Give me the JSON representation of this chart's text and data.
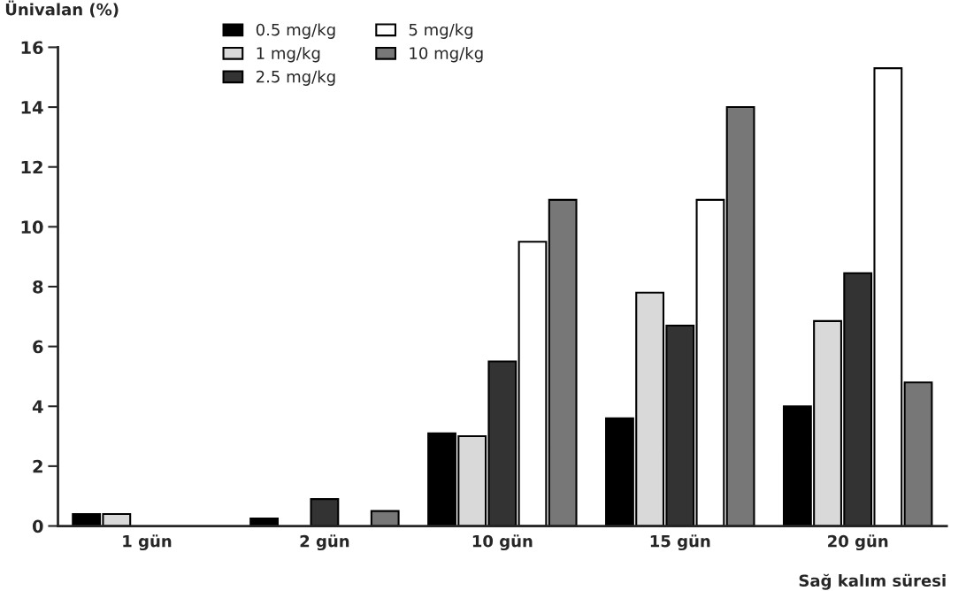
{
  "chart_data": {
    "type": "bar",
    "ylabel": "Ünivalan (%)",
    "xlabel": "Sağ kalım süresi",
    "categories": [
      "1 gün",
      "2 gün",
      "10 gün",
      "15 gün",
      "20 gün"
    ],
    "series": [
      {
        "name": "0.5 mg/kg",
        "color": "#000000",
        "values": [
          0.4,
          0.25,
          3.1,
          3.6,
          4.0
        ]
      },
      {
        "name": "1 mg/kg",
        "color": "#d9d9d9",
        "values": [
          0.4,
          null,
          3.0,
          7.8,
          6.85
        ]
      },
      {
        "name": "2.5 mg/kg",
        "color": "#333333",
        "values": [
          null,
          0.9,
          5.5,
          6.7,
          8.45
        ]
      },
      {
        "name": "5 mg/kg",
        "color": "#ffffff",
        "values": [
          null,
          null,
          9.5,
          10.9,
          15.3
        ]
      },
      {
        "name": "10 mg/kg",
        "color": "#777777",
        "values": [
          null,
          0.5,
          10.9,
          14.0,
          4.8
        ]
      }
    ],
    "ylim": [
      0,
      16
    ],
    "yticks": [
      0,
      2,
      4,
      6,
      8,
      10,
      12,
      14,
      16
    ],
    "grid": false,
    "legend": "top left"
  }
}
